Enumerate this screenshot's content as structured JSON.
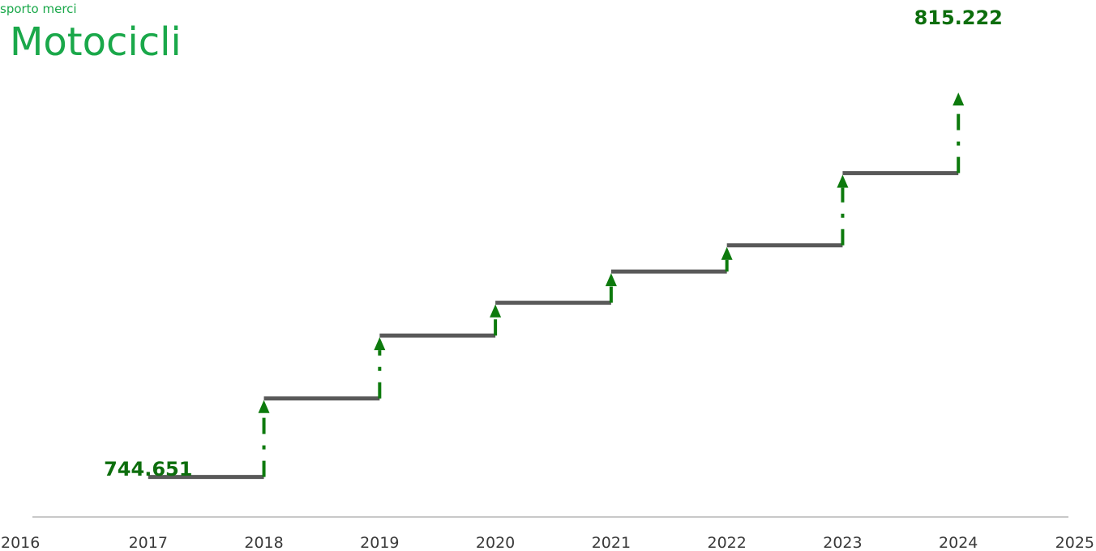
{
  "header": {
    "supertitle": "sporto merci",
    "title": "Motocicli"
  },
  "colors": {
    "title": "#1aa84a",
    "step": "#595959",
    "arrow": "#0d7a0d",
    "label": "#0d6e0d",
    "axis": "#c8c8c8",
    "tick": "#3a3a3a"
  },
  "chart_data": {
    "type": "line",
    "x_ticks": [
      "2016",
      "2017",
      "2018",
      "2019",
      "2020",
      "2021",
      "2022",
      "2023",
      "2024",
      "2025"
    ],
    "xlim": [
      2016,
      2025
    ],
    "ylim": [
      740000,
      820000
    ],
    "series": [
      {
        "years": [
          2017,
          2018,
          2019,
          2020,
          2021,
          2022,
          2023
        ],
        "values": [
          744651,
          759000,
          770500,
          776500,
          782200,
          787000,
          800200
        ]
      }
    ],
    "end_year": 2024,
    "end_value": 815222,
    "data_labels": [
      {
        "year": 2017,
        "text": "744.651"
      },
      {
        "year": 2024,
        "text": "815.222"
      }
    ],
    "grid": false,
    "legend": "none"
  }
}
